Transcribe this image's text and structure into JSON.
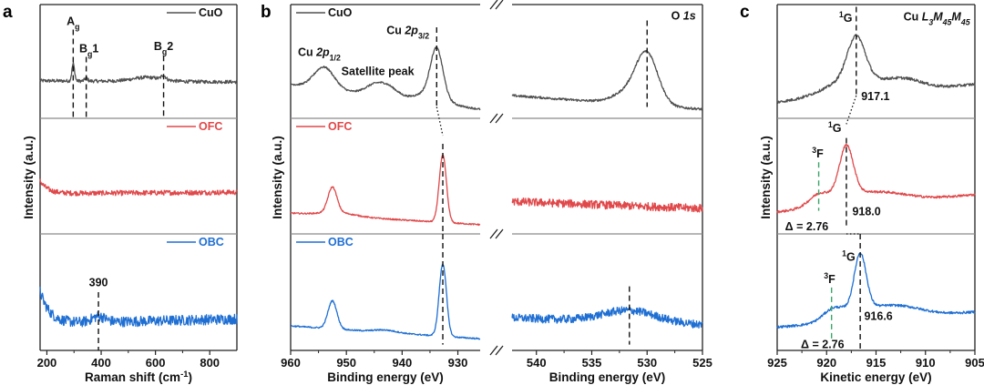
{
  "colors": {
    "CuO": "#505050",
    "OFC": "#e0484a",
    "OBC": "#1f6fd3",
    "green": "#3aa56a",
    "frame": "#222222",
    "divider": "#8a8a8a"
  },
  "chart_data": [
    {
      "panel": "a",
      "type": "line",
      "ylabel": "Intensity (a.u.)",
      "xlabel": [
        {
          "t": "Raman shift (cm"
        },
        {
          "t": "-1",
          "s": "sup"
        },
        {
          "t": ")"
        }
      ],
      "segments": [
        {
          "xlim": [
            175,
            900
          ],
          "ticks": [
            200,
            400,
            600,
            800
          ]
        }
      ],
      "legend_placement": "top-right",
      "series": [
        {
          "name": "CuO",
          "segments": [
            {
              "baseline": [
                0.33,
                0.32
              ],
              "peaks": [
                [
                  297,
                  0.15,
                  5
                ],
                [
                  345,
                  0.03,
                  5
                ],
                [
                  630,
                  0.035,
                  8
                ],
                [
                  570,
                  0.035,
                  55
                ]
              ],
              "noise": 0.015
            }
          ]
        },
        {
          "name": "OFC",
          "segments": [
            {
              "baseline": [
                0.35,
                0.36
              ],
              "decay": [
                0.11,
                28
              ],
              "noise": 0.022
            }
          ]
        },
        {
          "name": "OBC",
          "segments": [
            {
              "baseline": [
                0.23,
                0.27
              ],
              "decay": [
                0.28,
                35
              ],
              "peaks": [
                [
                  390,
                  0.05,
                  25
                ]
              ],
              "noise": 0.045
            }
          ]
        }
      ],
      "annotations": [
        {
          "row": 0,
          "seg": 0,
          "x": 297,
          "y": 0.82,
          "anchor": "middle",
          "parts": [
            {
              "t": "A"
            },
            {
              "t": "g",
              "s": "sub"
            }
          ]
        },
        {
          "row": 0,
          "seg": 0,
          "x": 355,
          "y": 0.58,
          "anchor": "middle",
          "parts": [
            {
              "t": "B"
            },
            {
              "t": "g",
              "s": "sub"
            },
            {
              "t": "1"
            }
          ]
        },
        {
          "row": 0,
          "seg": 0,
          "x": 630,
          "y": 0.6,
          "anchor": "middle",
          "parts": [
            {
              "t": "B"
            },
            {
              "t": "g",
              "s": "sub"
            },
            {
              "t": "2"
            }
          ]
        },
        {
          "row": 2,
          "seg": 0,
          "x": 390,
          "y": 0.55,
          "anchor": "middle",
          "parts": [
            {
              "t": "390"
            }
          ]
        }
      ],
      "marker_lines": [
        {
          "row": 0,
          "seg": 0,
          "x": 297,
          "from": 0.78,
          "to": 0,
          "style": "dash"
        },
        {
          "row": 0,
          "seg": 0,
          "x": 345,
          "from": 0.54,
          "to": 0,
          "style": "dash"
        },
        {
          "row": 0,
          "seg": 0,
          "x": 630,
          "from": 0.55,
          "to": 0,
          "style": "dash"
        },
        {
          "row": 2,
          "seg": 0,
          "x": 390,
          "from": 0.5,
          "to": 0,
          "style": "dash"
        }
      ]
    },
    {
      "panel": "b",
      "type": "line",
      "ylabel": "Intensity (a.u.)",
      "xlabel": [
        {
          "t": "Binding energy (eV)"
        }
      ],
      "xlabel2": [
        {
          "t": "Binding energy (eV)"
        }
      ],
      "segments": [
        {
          "xlim": [
            960,
            926
          ],
          "ticks": [
            960,
            950,
            940,
            930
          ]
        },
        {
          "xlim": [
            542.2,
            525
          ],
          "ticks": [
            540,
            535,
            530,
            525
          ]
        }
      ],
      "axis_break": "//",
      "legend_placement": "top-left",
      "series": [
        {
          "name": "CuO",
          "segments": [
            {
              "baseline": [
                0.3,
                0.08
              ],
              "peaks": [
                [
                  954,
                  0.19,
                  1.8
                ],
                [
                  944.8,
                  0.09,
                  1.8
                ],
                [
                  942.2,
                  0.07,
                  1.6
                ],
                [
                  933.8,
                  0.42,
                  1.1
                ],
                [
                  935,
                  0.08,
                  2.5
                ]
              ],
              "noise": 0.008
            },
            {
              "baseline": [
                0.2,
                0.08
              ],
              "peaks": [
                [
                  530,
                  0.42,
                  1.0
                ],
                [
                  531.6,
                  0.1,
                  1.4
                ]
              ],
              "noise": 0.01
            }
          ]
        },
        {
          "name": "OFC",
          "segments": [
            {
              "baseline": [
                0.18,
                0.08
              ],
              "peaks": [
                [
                  952.5,
                  0.22,
                  0.8
                ],
                [
                  951.5,
                  0.03,
                  3
                ],
                [
                  932.7,
                  0.58,
                  0.65
                ]
              ],
              "noise": 0.006
            },
            {
              "baseline": [
                0.28,
                0.22
              ],
              "noise": 0.035
            }
          ]
        },
        {
          "name": "OBC",
          "segments": [
            {
              "baseline": [
                0.21,
                0.1
              ],
              "peaks": [
                [
                  952.5,
                  0.24,
                  0.8
                ],
                [
                  943,
                  0.02,
                  2
                ],
                [
                  932.7,
                  0.62,
                  0.65
                ]
              ],
              "noise": 0.006
            },
            {
              "baseline": [
                0.28,
                0.22
              ],
              "peaks": [
                [
                  531.6,
                  0.1,
                  2.4
                ]
              ],
              "noise": 0.035
            }
          ]
        }
      ],
      "annotations": [
        {
          "row": 0,
          "seg": 0,
          "x": 958.7,
          "y": 0.55,
          "anchor": "start",
          "parts": [
            {
              "t": "Cu "
            },
            {
              "t": "2p",
              "s": "i"
            },
            {
              "t": "1/2",
              "s": "sub"
            }
          ]
        },
        {
          "row": 0,
          "seg": 0,
          "x": 950.9,
          "y": 0.38,
          "anchor": "start",
          "parts": [
            {
              "t": "Satellite peak"
            }
          ]
        },
        {
          "row": 0,
          "seg": 0,
          "x": 942.8,
          "y": 0.74,
          "anchor": "start",
          "parts": [
            {
              "t": "Cu "
            },
            {
              "t": "2p",
              "s": "i"
            },
            {
              "t": "3/2",
              "s": "sub"
            }
          ]
        },
        {
          "row": 0,
          "seg": 1,
          "x": 525.6,
          "y": 0.87,
          "anchor": "end",
          "parts": [
            {
              "t": "O "
            },
            {
              "t": "1s",
              "s": "i"
            }
          ]
        }
      ],
      "marker_lines": [
        {
          "row": 0,
          "seg": 0,
          "x": 933.8,
          "from": 0.8,
          "to": 0.1,
          "style": "dash"
        },
        {
          "row": 1,
          "seg": 0,
          "x": 932.7,
          "from": 0.78,
          "to": 0.0,
          "style": "dash"
        },
        {
          "row": 2,
          "seg": 0,
          "x": 932.7,
          "from": 1.0,
          "to": 0.05,
          "style": "dash"
        },
        {
          "row": 0,
          "seg": 1,
          "x": 530,
          "from": 0.86,
          "to": 0.1,
          "style": "dash"
        },
        {
          "row": 2,
          "seg": 1,
          "x": 531.6,
          "from": 0.55,
          "to": 0.05,
          "style": "dash"
        }
      ],
      "connectors": [
        {
          "seg": 0,
          "from": [
            933.8,
            0,
            0.1
          ],
          "to": [
            932.7,
            1,
            0.85
          ]
        }
      ]
    },
    {
      "panel": "c",
      "type": "line",
      "ylabel": "Intensity (a.u.)",
      "xlabel": [
        {
          "t": "Kinetic energy (eV)"
        }
      ],
      "segments": [
        {
          "xlim": [
            925,
            905
          ],
          "ticks": [
            925,
            920,
            915,
            910,
            905
          ]
        }
      ],
      "series": [
        {
          "name": "CuO",
          "segments": [
            {
              "baseline": [
                0.14,
                0.3
              ],
              "peaks": [
                [
                  917,
                  0.38,
                  0.9
                ],
                [
                  917.6,
                  0.14,
                  2.6
                ],
                [
                  913,
                  0.07,
                  1.8
                ],
                [
                  911.2,
                  0.04,
                  1.5
                ]
              ],
              "noise": 0.012
            }
          ]
        },
        {
          "name": "OFC",
          "segments": [
            {
              "baseline": [
                0.19,
                0.34
              ],
              "peaks": [
                [
                  918,
                  0.42,
                  0.7
                ],
                [
                  918.5,
                  0.08,
                  2.2
                ],
                [
                  920.8,
                  0.08,
                  1.0
                ],
                [
                  914.3,
                  0.08,
                  2.5
                ]
              ],
              "noise": 0.01
            }
          ]
        },
        {
          "name": "OBC",
          "segments": [
            {
              "baseline": [
                0.2,
                0.33
              ],
              "peaks": [
                [
                  916.6,
                  0.47,
                  0.6
                ],
                [
                  917.2,
                  0.08,
                  2.0
                ],
                [
                  919.4,
                  0.08,
                  1.0
                ],
                [
                  913,
                  0.1,
                  2.5
                ]
              ],
              "noise": 0.01
            }
          ]
        }
      ],
      "annotations": [
        {
          "row": 0,
          "seg": 0,
          "x": 917.4,
          "y": 0.85,
          "anchor": "end",
          "parts": [
            {
              "t": "1",
              "s": "sup"
            },
            {
              "t": "G"
            }
          ]
        },
        {
          "row": 0,
          "seg": 0,
          "x": 905.5,
          "y": 0.86,
          "anchor": "end",
          "parts": [
            {
              "t": "Cu "
            },
            {
              "t": "L",
              "s": "i"
            },
            {
              "t": "3",
              "s": "isub"
            },
            {
              "t": "M",
              "s": "i"
            },
            {
              "t": "45",
              "s": "isub"
            },
            {
              "t": "M",
              "s": "i"
            },
            {
              "t": "45",
              "s": "isub"
            }
          ]
        },
        {
          "row": 0,
          "seg": 0,
          "x": 916.5,
          "y": 0.16,
          "anchor": "start",
          "parts": [
            {
              "t": "917.1"
            }
          ]
        },
        {
          "row": 1,
          "seg": 0,
          "x": 918.5,
          "y": 0.88,
          "anchor": "end",
          "parts": [
            {
              "t": "1",
              "s": "sup"
            },
            {
              "t": "G"
            }
          ]
        },
        {
          "row": 1,
          "seg": 0,
          "x": 917.4,
          "y": 0.16,
          "anchor": "start",
          "parts": [
            {
              "t": "918.0"
            }
          ]
        },
        {
          "row": 1,
          "seg": 0,
          "x": 920.9,
          "y": 0.66,
          "anchor": "middle",
          "color": "green",
          "parts": [
            {
              "t": "3",
              "s": "sup"
            },
            {
              "t": "F"
            }
          ]
        },
        {
          "row": 1,
          "seg": 0,
          "x": 924.2,
          "y": 0.03,
          "anchor": "start",
          "color": "green",
          "parts": [
            {
              "t": "Δ = 2.76"
            }
          ]
        },
        {
          "row": 2,
          "seg": 0,
          "x": 917.1,
          "y": 0.77,
          "anchor": "end",
          "parts": [
            {
              "t": "1",
              "s": "sup"
            },
            {
              "t": "G"
            }
          ]
        },
        {
          "row": 2,
          "seg": 0,
          "x": 919.7,
          "y": 0.58,
          "anchor": "middle",
          "color": "green",
          "parts": [
            {
              "t": "3",
              "s": "sup"
            },
            {
              "t": "F"
            }
          ]
        },
        {
          "row": 2,
          "seg": 0,
          "x": 916.2,
          "y": 0.26,
          "anchor": "start",
          "parts": [
            {
              "t": "916.6"
            }
          ]
        },
        {
          "row": 2,
          "seg": 0,
          "x": 922.6,
          "y": 0.02,
          "anchor": "start",
          "color": "green",
          "parts": [
            {
              "t": "Δ = 2.76"
            }
          ]
        }
      ],
      "marker_lines": [
        {
          "row": 0,
          "seg": 0,
          "x": 917,
          "from": 0.98,
          "to": 0.2,
          "style": "dash"
        },
        {
          "row": 1,
          "seg": 0,
          "x": 918,
          "from": 0.83,
          "to": 0.05,
          "style": "dash"
        },
        {
          "row": 1,
          "seg": 0,
          "x": 920.8,
          "from": 0.62,
          "to": 0.2,
          "style": "dash",
          "color": "green"
        },
        {
          "row": 2,
          "seg": 0,
          "x": 916.6,
          "from": 1.0,
          "to": 0.0,
          "style": "dash"
        },
        {
          "row": 2,
          "seg": 0,
          "x": 919.5,
          "from": 0.54,
          "to": 0.08,
          "style": "dash",
          "color": "green"
        }
      ],
      "connectors": [
        {
          "seg": 0,
          "from": [
            917,
            0,
            0.2
          ],
          "to": [
            918,
            1,
            0.95
          ]
        },
        {
          "seg": 0,
          "from": [
            918,
            1,
            0.0
          ],
          "to": [
            916.6,
            2,
            1.0
          ]
        }
      ]
    }
  ],
  "panel_letters": [
    "a",
    "b",
    "c"
  ]
}
